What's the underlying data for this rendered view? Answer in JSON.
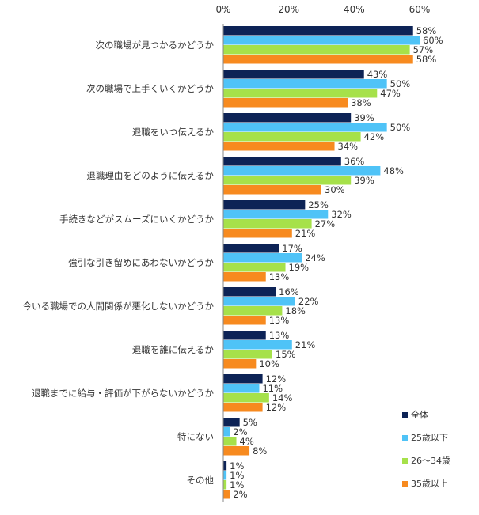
{
  "chart_data": {
    "type": "bar",
    "orientation": "horizontal",
    "xlim": [
      0,
      60
    ],
    "x_ticks": [
      "0%",
      "20%",
      "40%",
      "60%"
    ],
    "categories": [
      "次の職場が見つかるかどうか",
      "次の職場で上手くいくかどうか",
      "退職をいつ伝えるか",
      "退職理由をどのように伝えるか",
      "手続きなどがスムーズにいくかどうか",
      "強引な引き留めにあわないかどうか",
      "今いる職場での人間関係が悪化しないかどうか",
      "退職を誰に伝えるか",
      "退職までに給与・評価が下がらないかどうか",
      "特にない",
      "その他"
    ],
    "series": [
      {
        "name": "全体",
        "color": "#0d2356",
        "values": [
          58,
          43,
          39,
          36,
          25,
          17,
          16,
          13,
          12,
          5,
          1
        ]
      },
      {
        "name": "25歳以下",
        "color": "#4fc3f7",
        "values": [
          60,
          50,
          50,
          48,
          32,
          24,
          22,
          21,
          11,
          2,
          1
        ]
      },
      {
        "name": "26〜34歳",
        "color": "#a6e14a",
        "values": [
          57,
          47,
          42,
          39,
          27,
          19,
          18,
          15,
          14,
          4,
          1
        ]
      },
      {
        "name": "35歳以上",
        "color": "#f78a1f",
        "values": [
          58,
          38,
          34,
          30,
          21,
          13,
          13,
          10,
          12,
          8,
          2
        ]
      }
    ],
    "value_suffix": "%",
    "legend_position": "bottom-right",
    "grid": false
  }
}
